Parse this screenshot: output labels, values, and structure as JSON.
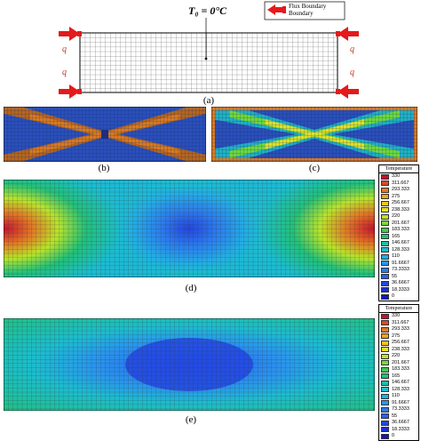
{
  "panel_a": {
    "temperature_label": "T₀ = 0°C",
    "flux_legend_line1": "Flux Boundary",
    "flux_legend_line2": "Boundary",
    "q_label": "q",
    "caption": "(a)"
  },
  "captions": {
    "b": "(b)",
    "c": "(c)",
    "d": "(d)",
    "e": "(e)"
  },
  "legend": {
    "title": "Temperature",
    "entries": [
      {
        "value": "330",
        "color": "#c8102e"
      },
      {
        "value": "311.667",
        "color": "#d94a2a"
      },
      {
        "value": "293.333",
        "color": "#e27b24"
      },
      {
        "value": "275",
        "color": "#f0a51e"
      },
      {
        "value": "256.667",
        "color": "#f4c61c"
      },
      {
        "value": "238.333",
        "color": "#e6e020"
      },
      {
        "value": "220",
        "color": "#b8e42a"
      },
      {
        "value": "201.667",
        "color": "#7bd83a"
      },
      {
        "value": "183.333",
        "color": "#3fcc4e"
      },
      {
        "value": "165",
        "color": "#22c07a"
      },
      {
        "value": "146.667",
        "color": "#1cc0a8"
      },
      {
        "value": "128.333",
        "color": "#1cbcd0"
      },
      {
        "value": "110",
        "color": "#22aee4"
      },
      {
        "value": "91.6667",
        "color": "#2a96ec"
      },
      {
        "value": "73.3333",
        "color": "#2c7cee"
      },
      {
        "value": "55",
        "color": "#2a60ea"
      },
      {
        "value": "36.6667",
        "color": "#2346e0"
      },
      {
        "value": "18.3333",
        "color": "#1c2ed4"
      },
      {
        "value": "0",
        "color": "#1414c0"
      }
    ]
  }
}
